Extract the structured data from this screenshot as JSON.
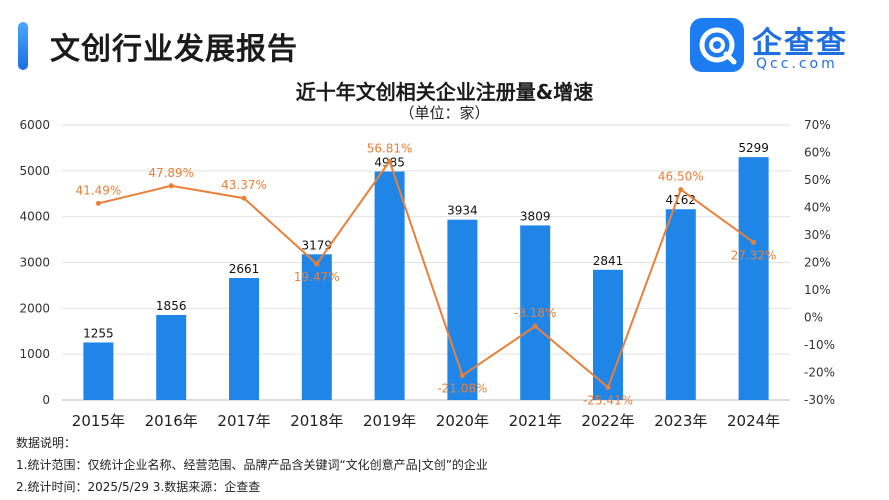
{
  "header": {
    "report_title": "文创行业发展报告",
    "logo_text": "企查查",
    "logo_sub": "Qcc.com"
  },
  "chart_data": {
    "type": "bar",
    "title": "近十年文创相关企业注册量&增速",
    "subtitle": "（单位：家）",
    "categories": [
      "2015年",
      "2016年",
      "2017年",
      "2018年",
      "2019年",
      "2020年",
      "2021年",
      "2022年",
      "2023年",
      "2024年"
    ],
    "series": [
      {
        "kind": "bar",
        "values": [
          1255,
          1856,
          2661,
          3179,
          4985,
          3934,
          3809,
          2841,
          4162,
          5299
        ],
        "color": "#1f86e8"
      },
      {
        "kind": "line",
        "values": [
          41.49,
          47.89,
          43.37,
          19.47,
          56.81,
          -21.08,
          -3.18,
          -25.41,
          46.5,
          27.32
        ],
        "labels": [
          "41.49%",
          "47.89%",
          "43.37%",
          "19.47%",
          "56.81%",
          "-21.08%",
          "-3.18%",
          "-25.41%",
          "46.50%",
          "27.32%"
        ],
        "color": "#e8803a"
      }
    ],
    "y_left": {
      "ylim": [
        0,
        6000
      ],
      "ticks": [
        "0",
        "1000",
        "2000",
        "3000",
        "4000",
        "5000",
        "6000"
      ]
    },
    "y_right": {
      "ylim": [
        -30,
        70
      ],
      "ticks": [
        "-30%",
        "-20%",
        "-10%",
        "0%",
        "10%",
        "20%",
        "30%",
        "40%",
        "50%",
        "60%",
        "70%"
      ]
    },
    "grid": true
  },
  "notes": {
    "heading": "数据说明：",
    "line1": "1.统计范围：仅统计企业名称、经营范围、品牌产品含关键词“文化创意产品|文创”的企业",
    "line2": "2.统计时间：2025/5/29  3.数据来源：企查查"
  }
}
